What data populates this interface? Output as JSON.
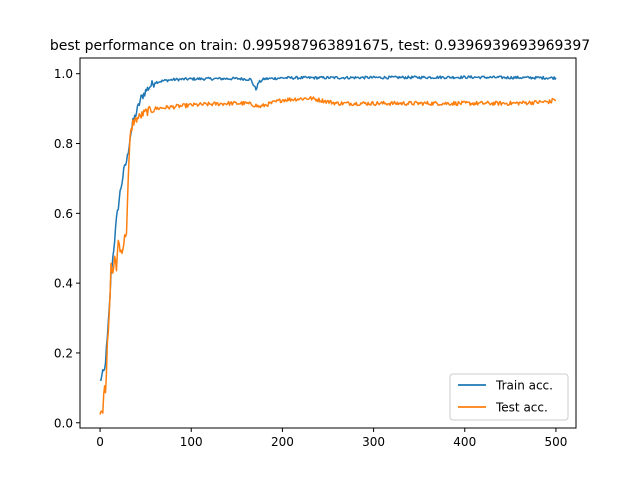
{
  "chart_data": {
    "type": "line",
    "title": "best performance on train: 0.995987963891675, test: 0.9396939693969397",
    "xlabel": "",
    "ylabel": "",
    "xlim": [
      -22,
      522
    ],
    "ylim": [
      -0.015,
      1.045
    ],
    "x_ticks": [
      0,
      100,
      200,
      300,
      400,
      500
    ],
    "y_ticks": [
      0.0,
      0.2,
      0.4,
      0.6,
      0.8,
      1.0
    ],
    "x_tick_labels": [
      "0",
      "100",
      "200",
      "300",
      "400",
      "500"
    ],
    "y_tick_labels": [
      "0.0",
      "0.2",
      "0.4",
      "0.6",
      "0.8",
      "1.0"
    ],
    "grid": false,
    "legend_position": "lower-right",
    "series": [
      {
        "name": "Train acc.",
        "color": "#1f77b4",
        "anchors": [
          [
            0,
            0.12
          ],
          [
            3,
            0.14
          ],
          [
            5,
            0.15
          ],
          [
            8,
            0.24
          ],
          [
            10,
            0.32
          ],
          [
            12,
            0.42
          ],
          [
            15,
            0.5
          ],
          [
            18,
            0.58
          ],
          [
            22,
            0.66
          ],
          [
            26,
            0.72
          ],
          [
            30,
            0.76
          ],
          [
            33,
            0.82
          ],
          [
            36,
            0.86
          ],
          [
            40,
            0.89
          ],
          [
            45,
            0.93
          ],
          [
            50,
            0.95
          ],
          [
            55,
            0.965
          ],
          [
            60,
            0.975
          ],
          [
            70,
            0.98
          ],
          [
            80,
            0.983
          ],
          [
            100,
            0.985
          ],
          [
            150,
            0.986
          ],
          [
            165,
            0.984
          ],
          [
            168,
            0.97
          ],
          [
            171,
            0.955
          ],
          [
            174,
            0.975
          ],
          [
            180,
            0.985
          ],
          [
            200,
            0.988
          ],
          [
            300,
            0.989
          ],
          [
            400,
            0.99
          ],
          [
            500,
            0.988
          ]
        ]
      },
      {
        "name": "Test acc.",
        "color": "#ff7f0e",
        "anchors": [
          [
            0,
            0.035
          ],
          [
            3,
            0.038
          ],
          [
            4,
            0.09
          ],
          [
            5,
            0.11
          ],
          [
            6,
            0.075
          ],
          [
            7,
            0.14
          ],
          [
            8,
            0.22
          ],
          [
            10,
            0.3
          ],
          [
            12,
            0.45
          ],
          [
            14,
            0.43
          ],
          [
            16,
            0.47
          ],
          [
            18,
            0.44
          ],
          [
            20,
            0.53
          ],
          [
            22,
            0.49
          ],
          [
            25,
            0.5
          ],
          [
            27,
            0.53
          ],
          [
            29,
            0.55
          ],
          [
            31,
            0.7
          ],
          [
            33,
            0.82
          ],
          [
            36,
            0.86
          ],
          [
            40,
            0.87
          ],
          [
            45,
            0.88
          ],
          [
            50,
            0.89
          ],
          [
            60,
            0.9
          ],
          [
            80,
            0.905
          ],
          [
            100,
            0.91
          ],
          [
            140,
            0.915
          ],
          [
            160,
            0.915
          ],
          [
            170,
            0.91
          ],
          [
            175,
            0.905
          ],
          [
            200,
            0.925
          ],
          [
            230,
            0.93
          ],
          [
            260,
            0.915
          ],
          [
            300,
            0.915
          ],
          [
            350,
            0.915
          ],
          [
            400,
            0.915
          ],
          [
            450,
            0.915
          ],
          [
            495,
            0.92
          ],
          [
            498,
            0.93
          ],
          [
            500,
            0.92
          ]
        ]
      }
    ]
  }
}
